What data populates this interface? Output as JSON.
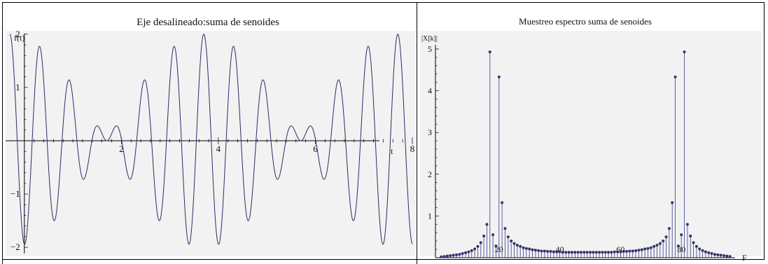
{
  "chart_data": [
    {
      "type": "line",
      "title": "Eje desalineado:suma de senoides",
      "ylabel": "f(t)",
      "xlabel": "t",
      "xlim": [
        -0.3,
        8.0
      ],
      "ylim": [
        -2.05,
        2.05
      ],
      "x_ticks": [
        2,
        4,
        6,
        8
      ],
      "y_ticks": [
        -2,
        -1,
        1,
        2
      ],
      "series": [
        {
          "function": "cos(2*pi*f1*(t+0.3)) + cos(2*pi*f2*(t+0.3))",
          "f1": 1.5,
          "f2": 1.75,
          "x_start": -0.3,
          "x_end": 8.0,
          "color": "#2b2b6b"
        }
      ],
      "grid": false,
      "background": "#f2f2f2"
    },
    {
      "type": "stem",
      "title": "Muestreo espectro suma de senoides",
      "ylabel": "|X[k]|",
      "xlabel": "F",
      "xlim": [
        0,
        97
      ],
      "ylim": [
        0,
        5.1
      ],
      "x_ticks": [
        20,
        40,
        60,
        80
      ],
      "y_ticks": [
        1,
        2,
        3,
        4,
        5
      ],
      "x": [
        1,
        2,
        3,
        4,
        5,
        6,
        7,
        8,
        9,
        10,
        11,
        12,
        13,
        14,
        15,
        16,
        17,
        18,
        19,
        20,
        21,
        22,
        23,
        24,
        25,
        26,
        27,
        28,
        29,
        30,
        31,
        32,
        33,
        34,
        35,
        36,
        37,
        38,
        39,
        40,
        41,
        42,
        43,
        44,
        45,
        46,
        47,
        48,
        49,
        50,
        51,
        52,
        53,
        54,
        55,
        56,
        57,
        58,
        59,
        60,
        61,
        62,
        63,
        64,
        65,
        66,
        67,
        68,
        69,
        70,
        71,
        72,
        73,
        74,
        75,
        76,
        77,
        78,
        79,
        80,
        81,
        82,
        83,
        84,
        85,
        86,
        87,
        88,
        89,
        90,
        91,
        92,
        93,
        94,
        95,
        96
      ],
      "values": [
        0.02,
        0.03,
        0.04,
        0.05,
        0.06,
        0.07,
        0.08,
        0.1,
        0.12,
        0.14,
        0.17,
        0.21,
        0.27,
        0.36,
        0.52,
        0.8,
        4.93,
        0.55,
        0.28,
        4.33,
        1.32,
        0.7,
        0.5,
        0.4,
        0.34,
        0.3,
        0.27,
        0.24,
        0.22,
        0.21,
        0.19,
        0.18,
        0.17,
        0.16,
        0.16,
        0.15,
        0.15,
        0.14,
        0.14,
        0.14,
        0.13,
        0.13,
        0.13,
        0.13,
        0.13,
        0.13,
        0.13,
        0.13,
        0.13,
        0.13,
        0.13,
        0.13,
        0.13,
        0.13,
        0.13,
        0.13,
        0.13,
        0.14,
        0.14,
        0.14,
        0.15,
        0.15,
        0.16,
        0.16,
        0.17,
        0.18,
        0.19,
        0.21,
        0.22,
        0.24,
        0.27,
        0.3,
        0.34,
        0.4,
        0.5,
        0.7,
        1.32,
        4.33,
        0.28,
        0.55,
        4.93,
        0.8,
        0.52,
        0.36,
        0.27,
        0.21,
        0.17,
        0.14,
        0.12,
        0.1,
        0.08,
        0.07,
        0.06,
        0.05,
        0.04,
        0.03
      ],
      "color": "#3a3a8c",
      "grid": false,
      "background": "#f2f2f2"
    }
  ]
}
